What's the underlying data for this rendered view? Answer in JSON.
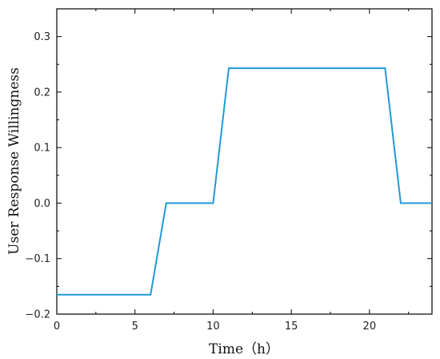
{
  "chart_data": {
    "type": "line",
    "title": "",
    "xlabel": "Time（h）",
    "ylabel": "User Response Willingness",
    "xlim": [
      0,
      24
    ],
    "ylim": [
      -0.2,
      0.35
    ],
    "xticks": [
      0,
      5,
      10,
      15,
      20
    ],
    "xtick_labels": [
      "0",
      "5",
      "10",
      "15",
      "20"
    ],
    "yticks": [
      -0.2,
      -0.1,
      0.0,
      0.1,
      0.2,
      0.3
    ],
    "ytick_labels": [
      "−0.2",
      "−0.1",
      "0.0",
      "0.1",
      "0.2",
      "0.3"
    ],
    "grid": false,
    "series": [
      {
        "color": "#1f9ad6",
        "x": [
          0,
          6,
          7,
          10,
          11,
          21,
          22,
          24
        ],
        "y": [
          -0.165,
          -0.165,
          0.0,
          0.0,
          0.243,
          0.243,
          0.0,
          0.0
        ]
      }
    ]
  }
}
